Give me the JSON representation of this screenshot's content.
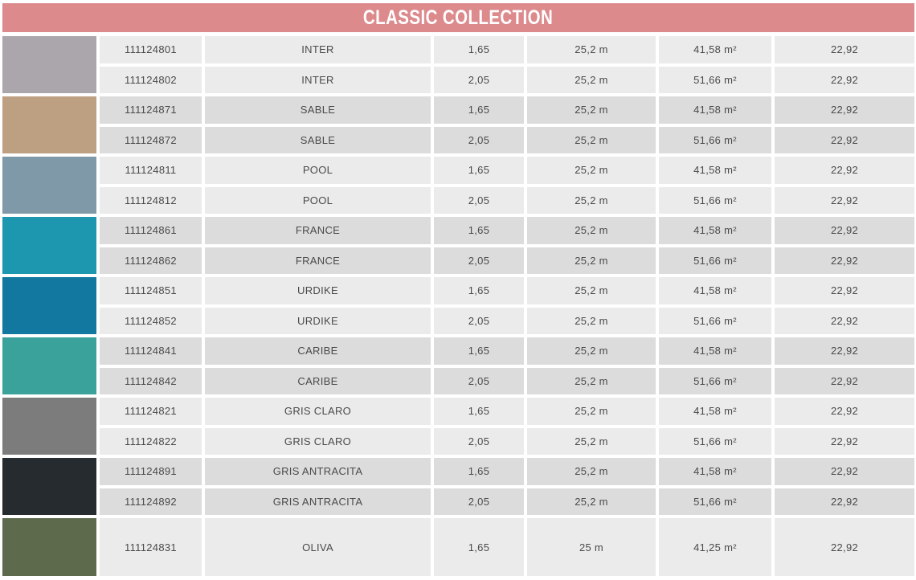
{
  "title": "CLASSIC COLLECTION",
  "theme": {
    "header_bg": "#dd8a8d",
    "header_text": "#ffffff",
    "row_light": "#ebebeb",
    "row_dark": "#dcdcdc",
    "cell_text": "#4a4a4a"
  },
  "groups": [
    {
      "name": "INTER",
      "swatch_color": "#aba6ac",
      "shade": "light",
      "rows": [
        {
          "code": "111124801",
          "name": "INTER",
          "width": "1,65",
          "length": "25,2 m",
          "area": "41,58 m²",
          "price": "22,92"
        },
        {
          "code": "111124802",
          "name": "INTER",
          "width": "2,05",
          "length": "25,2 m",
          "area": "51,66 m²",
          "price": "22,92"
        }
      ]
    },
    {
      "name": "SABLE",
      "swatch_color": "#bd9f82",
      "shade": "dark",
      "rows": [
        {
          "code": "111124871",
          "name": "SABLE",
          "width": "1,65",
          "length": "25,2 m",
          "area": "41,58 m²",
          "price": "22,92"
        },
        {
          "code": "111124872",
          "name": "SABLE",
          "width": "2,05",
          "length": "25,2 m",
          "area": "51,66 m²",
          "price": "22,92"
        }
      ]
    },
    {
      "name": "POOL",
      "swatch_color": "#8099a8",
      "shade": "light",
      "rows": [
        {
          "code": "111124811",
          "name": "POOL",
          "width": "1,65",
          "length": "25,2 m",
          "area": "41,58 m²",
          "price": "22,92"
        },
        {
          "code": "111124812",
          "name": "POOL",
          "width": "2,05",
          "length": "25,2 m",
          "area": "51,66 m²",
          "price": "22,92"
        }
      ]
    },
    {
      "name": "FRANCE",
      "swatch_color": "#1d97b0",
      "shade": "dark",
      "rows": [
        {
          "code": "111124861",
          "name": "FRANCE",
          "width": "1,65",
          "length": "25,2 m",
          "area": "41,58 m²",
          "price": "22,92"
        },
        {
          "code": "111124862",
          "name": "FRANCE",
          "width": "2,05",
          "length": "25,2 m",
          "area": "51,66 m²",
          "price": "22,92"
        }
      ]
    },
    {
      "name": "URDIKE",
      "swatch_color": "#13789f",
      "shade": "light",
      "rows": [
        {
          "code": "111124851",
          "name": "URDIKE",
          "width": "1,65",
          "length": "25,2 m",
          "area": "41,58 m²",
          "price": "22,92"
        },
        {
          "code": "111124852",
          "name": "URDIKE",
          "width": "2,05",
          "length": "25,2 m",
          "area": "51,66 m²",
          "price": "22,92"
        }
      ]
    },
    {
      "name": "CARIBE",
      "swatch_color": "#3aa29b",
      "shade": "dark",
      "rows": [
        {
          "code": "111124841",
          "name": "CARIBE",
          "width": "1,65",
          "length": "25,2 m",
          "area": "41,58 m²",
          "price": "22,92"
        },
        {
          "code": "111124842",
          "name": "CARIBE",
          "width": "2,05",
          "length": "25,2 m",
          "area": "51,66 m²",
          "price": "22,92"
        }
      ]
    },
    {
      "name": "GRIS CLARO",
      "swatch_color": "#7d7c7d",
      "shade": "light",
      "rows": [
        {
          "code": "111124821",
          "name": "GRIS CLARO",
          "width": "1,65",
          "length": "25,2 m",
          "area": "41,58 m²",
          "price": "22,92"
        },
        {
          "code": "111124822",
          "name": "GRIS CLARO",
          "width": "2,05",
          "length": "25,2 m",
          "area": "51,66 m²",
          "price": "22,92"
        }
      ]
    },
    {
      "name": "GRIS ANTRACITA",
      "swatch_color": "#262b2f",
      "shade": "dark",
      "rows": [
        {
          "code": "111124891",
          "name": "GRIS ANTRACITA",
          "width": "1,65",
          "length": "25,2 m",
          "area": "41,58 m²",
          "price": "22,92"
        },
        {
          "code": "111124892",
          "name": "GRIS ANTRACITA",
          "width": "2,05",
          "length": "25,2 m",
          "area": "51,66 m²",
          "price": "22,92"
        }
      ]
    },
    {
      "name": "OLIVA",
      "swatch_color": "#5d6b4c",
      "shade": "light",
      "rows": [
        {
          "code": "111124831",
          "name": "OLIVA",
          "width": "1,65",
          "length": "25 m",
          "area": "41,25 m²",
          "price": "22,92"
        }
      ]
    }
  ]
}
